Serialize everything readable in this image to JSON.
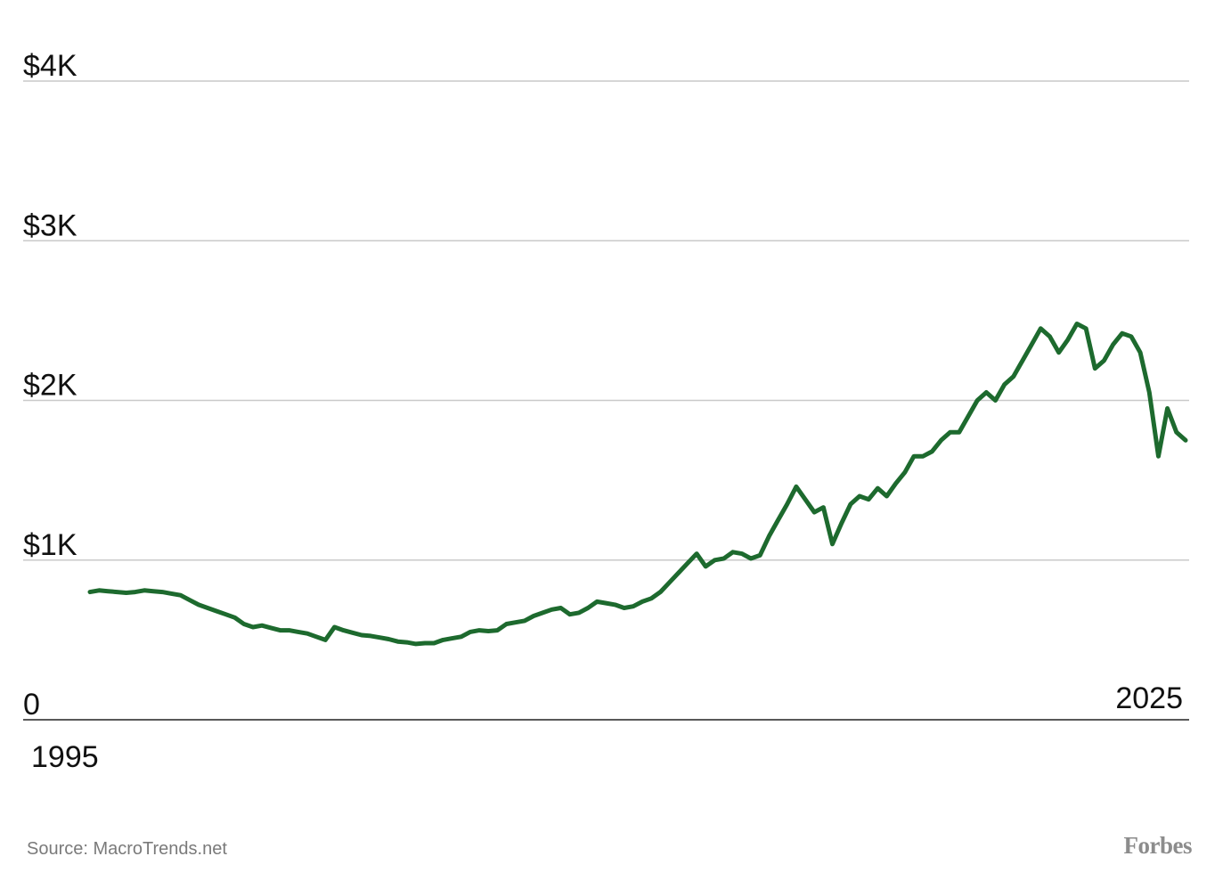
{
  "source": "Source: MacroTrends.net",
  "brand": "Forbes",
  "chart_data": {
    "type": "line",
    "title": "",
    "xlabel": "",
    "ylabel": "",
    "xlim": [
      1995,
      2025.3
    ],
    "ylim": [
      0,
      4000
    ],
    "x_tick_labels": [
      {
        "x": 1995,
        "label": "1995"
      },
      {
        "x": 2025,
        "label": "2025"
      }
    ],
    "y_tick_labels": [
      {
        "y": 0,
        "label": "0"
      },
      {
        "y": 1000,
        "label": "$1K"
      },
      {
        "y": 2000,
        "label": "$2K"
      },
      {
        "y": 3000,
        "label": "$3K"
      },
      {
        "y": 4000,
        "label": "$4K"
      }
    ],
    "grid": true,
    "legend": "none",
    "line_color": "#1d6a2e",
    "series": [
      {
        "name": "",
        "points": [
          [
            1995.0,
            800
          ],
          [
            1995.25,
            810
          ],
          [
            1995.5,
            805
          ],
          [
            1995.75,
            800
          ],
          [
            1996.0,
            795
          ],
          [
            1996.25,
            800
          ],
          [
            1996.5,
            810
          ],
          [
            1996.75,
            805
          ],
          [
            1997.0,
            800
          ],
          [
            1997.25,
            790
          ],
          [
            1997.5,
            780
          ],
          [
            1997.75,
            750
          ],
          [
            1998.0,
            720
          ],
          [
            1998.25,
            700
          ],
          [
            1998.5,
            680
          ],
          [
            1998.75,
            660
          ],
          [
            1999.0,
            640
          ],
          [
            1999.25,
            600
          ],
          [
            1999.5,
            580
          ],
          [
            1999.75,
            590
          ],
          [
            2000.0,
            575
          ],
          [
            2000.25,
            560
          ],
          [
            2000.5,
            560
          ],
          [
            2000.75,
            550
          ],
          [
            2001.0,
            540
          ],
          [
            2001.25,
            520
          ],
          [
            2001.5,
            500
          ],
          [
            2001.75,
            580
          ],
          [
            2002.0,
            560
          ],
          [
            2002.25,
            545
          ],
          [
            2002.5,
            530
          ],
          [
            2002.75,
            525
          ],
          [
            2003.0,
            515
          ],
          [
            2003.25,
            505
          ],
          [
            2003.5,
            490
          ],
          [
            2003.75,
            485
          ],
          [
            2004.0,
            475
          ],
          [
            2004.25,
            480
          ],
          [
            2004.5,
            480
          ],
          [
            2004.75,
            500
          ],
          [
            2005.0,
            510
          ],
          [
            2005.25,
            520
          ],
          [
            2005.5,
            550
          ],
          [
            2005.75,
            560
          ],
          [
            2006.0,
            555
          ],
          [
            2006.25,
            560
          ],
          [
            2006.5,
            600
          ],
          [
            2006.75,
            610
          ],
          [
            2007.0,
            620
          ],
          [
            2007.25,
            650
          ],
          [
            2007.5,
            670
          ],
          [
            2007.75,
            690
          ],
          [
            2008.0,
            700
          ],
          [
            2008.25,
            660
          ],
          [
            2008.5,
            670
          ],
          [
            2008.75,
            700
          ],
          [
            2009.0,
            740
          ],
          [
            2009.25,
            730
          ],
          [
            2009.5,
            720
          ],
          [
            2009.75,
            700
          ],
          [
            2010.0,
            710
          ],
          [
            2010.25,
            740
          ],
          [
            2010.5,
            760
          ],
          [
            2010.75,
            800
          ],
          [
            2011.0,
            860
          ],
          [
            2011.25,
            920
          ],
          [
            2011.5,
            980
          ],
          [
            2011.75,
            1040
          ],
          [
            2012.0,
            960
          ],
          [
            2012.25,
            1000
          ],
          [
            2012.5,
            1010
          ],
          [
            2012.75,
            1050
          ],
          [
            2013.0,
            1040
          ],
          [
            2013.25,
            1010
          ],
          [
            2013.5,
            1030
          ],
          [
            2013.75,
            1150
          ],
          [
            2014.0,
            1250
          ],
          [
            2014.25,
            1350
          ],
          [
            2014.5,
            1460
          ],
          [
            2014.75,
            1380
          ],
          [
            2015.0,
            1300
          ],
          [
            2015.25,
            1330
          ],
          [
            2015.5,
            1100
          ],
          [
            2015.75,
            1230
          ],
          [
            2016.0,
            1350
          ],
          [
            2016.25,
            1400
          ],
          [
            2016.5,
            1380
          ],
          [
            2016.75,
            1450
          ],
          [
            2017.0,
            1400
          ],
          [
            2017.25,
            1480
          ],
          [
            2017.5,
            1550
          ],
          [
            2017.75,
            1650
          ],
          [
            2018.0,
            1650
          ],
          [
            2018.25,
            1680
          ],
          [
            2018.5,
            1750
          ],
          [
            2018.75,
            1800
          ],
          [
            2019.0,
            1800
          ],
          [
            2019.25,
            1900
          ],
          [
            2019.5,
            2000
          ],
          [
            2019.75,
            2050
          ],
          [
            2020.0,
            2000
          ],
          [
            2020.25,
            2100
          ],
          [
            2020.5,
            2150
          ],
          [
            2020.75,
            2250
          ],
          [
            2021.0,
            2350
          ],
          [
            2021.25,
            2450
          ],
          [
            2021.5,
            2400
          ],
          [
            2021.75,
            2300
          ],
          [
            2022.0,
            2380
          ],
          [
            2022.25,
            2480
          ],
          [
            2022.5,
            2450
          ],
          [
            2022.75,
            2200
          ],
          [
            2023.0,
            2250
          ],
          [
            2023.25,
            2350
          ],
          [
            2023.5,
            2420
          ],
          [
            2023.75,
            2400
          ],
          [
            2024.0,
            2300
          ],
          [
            2024.25,
            2050
          ],
          [
            2024.5,
            1650
          ],
          [
            2024.75,
            1950
          ],
          [
            2025.0,
            1800
          ],
          [
            2025.25,
            1750
          ]
        ]
      }
    ]
  }
}
